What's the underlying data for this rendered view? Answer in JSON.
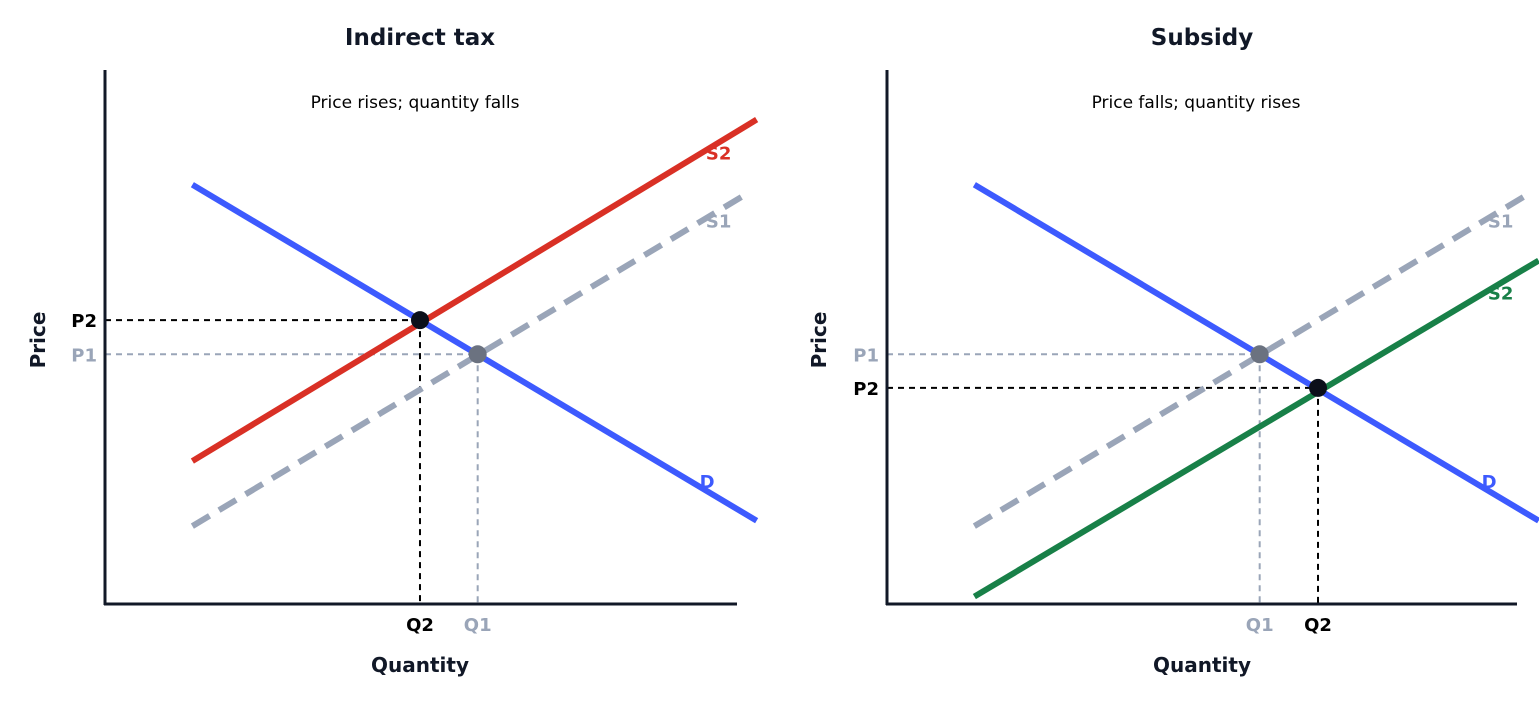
{
  "colors": {
    "axis": "#111827",
    "demand": "#3d5afe",
    "tax_supply": "#d93025",
    "subsidy_supply": "#188048",
    "original_supply": "#9aa5b8",
    "original_marker": "#6b7280",
    "new_marker": "#0b0f1a",
    "new_guide": "#000000",
    "old_guide": "#9aa5b8"
  },
  "chart_data": [
    {
      "type": "line",
      "title": "Indirect tax",
      "annotation": "Price rises; quantity falls",
      "xlabel": "Quantity",
      "ylabel": "Price",
      "xlim": [
        0,
        10
      ],
      "ylim": [
        0,
        10
      ],
      "series": [
        {
          "name": "D",
          "role": "demand",
          "style": "solid",
          "x": [
            0.7,
            9.6
          ],
          "y": [
            7.7,
            1.5
          ]
        },
        {
          "name": "S1",
          "role": "original_supply",
          "style": "dashed",
          "x": [
            0.7,
            9.4
          ],
          "y": [
            1.4,
            7.5
          ]
        },
        {
          "name": "S2",
          "role": "tax_supply",
          "style": "solid",
          "x": [
            0.7,
            9.6
          ],
          "y": [
            2.6,
            8.9
          ]
        }
      ],
      "points": [
        {
          "label": "new equilibrium",
          "x": 4.29,
          "y": 5.2,
          "style": "new"
        },
        {
          "label": "original equilibrium",
          "x": 5.2,
          "y": 4.57,
          "style": "old"
        }
      ],
      "x_ticks": [
        {
          "label": "Q2",
          "value": 4.29,
          "style": "new"
        },
        {
          "label": "Q1",
          "value": 5.2,
          "style": "old"
        }
      ],
      "y_ticks": [
        {
          "label": "P2",
          "value": 5.2,
          "style": "new"
        },
        {
          "label": "P1",
          "value": 4.57,
          "style": "old"
        }
      ]
    },
    {
      "type": "line",
      "title": "Subsidy",
      "annotation": "Price falls; quantity rises",
      "xlabel": "Quantity",
      "ylabel": "Price",
      "xlim": [
        0,
        10
      ],
      "ylim": [
        0,
        10
      ],
      "series": [
        {
          "name": "D",
          "role": "demand",
          "style": "solid",
          "x": [
            0.7,
            9.6
          ],
          "y": [
            7.7,
            1.5
          ]
        },
        {
          "name": "S1",
          "role": "original_supply",
          "style": "dashed",
          "x": [
            0.7,
            9.4
          ],
          "y": [
            1.4,
            7.5
          ]
        },
        {
          "name": "S2",
          "role": "subsidy_supply",
          "style": "solid",
          "x": [
            0.7,
            9.6
          ],
          "y": [
            0.1,
            6.3
          ]
        }
      ],
      "points": [
        {
          "label": "original equilibrium",
          "x": 5.2,
          "y": 4.57,
          "style": "old"
        },
        {
          "label": "new equilibrium",
          "x": 6.12,
          "y": 3.95,
          "style": "new"
        }
      ],
      "x_ticks": [
        {
          "label": "Q1",
          "value": 5.2,
          "style": "old"
        },
        {
          "label": "Q2",
          "value": 6.12,
          "style": "new"
        }
      ],
      "y_ticks": [
        {
          "label": "P1",
          "value": 4.57,
          "style": "old"
        },
        {
          "label": "P2",
          "value": 3.95,
          "style": "new"
        }
      ]
    }
  ]
}
